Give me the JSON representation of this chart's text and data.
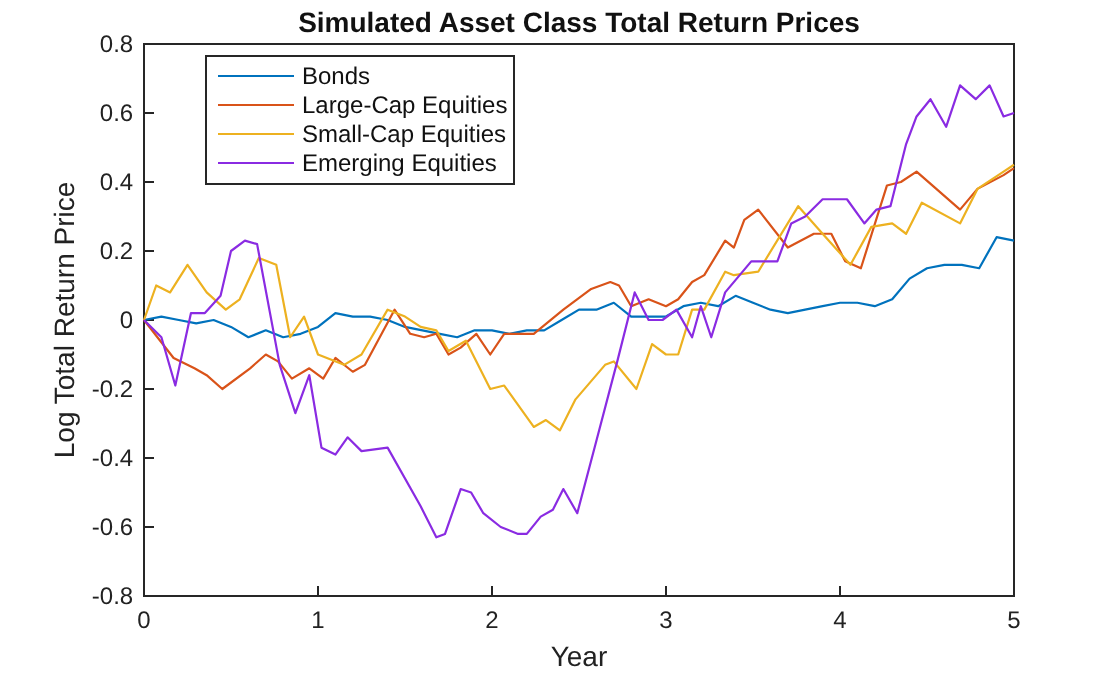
{
  "chart_data": {
    "type": "line",
    "title": "Simulated Asset Class Total Return Prices",
    "xlabel": "Year",
    "ylabel": "Log Total Return Price",
    "xlim": [
      0,
      5
    ],
    "xticks": [
      0,
      1,
      2,
      3,
      4,
      5
    ],
    "ylim": [
      -0.8,
      0.8
    ],
    "yticks": [
      -0.8,
      -0.6,
      -0.4,
      -0.2,
      0,
      0.2,
      0.4,
      0.6,
      0.8
    ],
    "legend": "top left",
    "grid": false,
    "marker": "none",
    "line_style": "solid",
    "series": [
      {
        "name": "Bonds",
        "color": "#0072bd",
        "x": [
          0,
          0.1,
          0.2,
          0.3,
          0.4,
          0.5,
          0.6,
          0.7,
          0.8,
          0.9,
          1.0,
          1.1,
          1.2,
          1.3,
          1.4,
          1.5,
          1.6,
          1.7,
          1.8,
          1.9,
          2.0,
          2.1,
          2.2,
          2.3,
          2.4,
          2.5,
          2.6,
          2.7,
          2.8,
          2.9,
          3.0,
          3.1,
          3.2,
          3.3,
          3.4,
          3.5,
          3.6,
          3.7,
          3.8,
          3.9,
          4.0,
          4.1,
          4.2,
          4.3,
          4.4,
          4.5,
          4.6,
          4.7,
          4.8,
          4.9,
          5.0
        ],
        "values": [
          0,
          0.01,
          0,
          -0.01,
          0,
          -0.02,
          -0.05,
          -0.03,
          -0.05,
          -0.04,
          -0.02,
          0.02,
          0.01,
          0.01,
          0,
          -0.02,
          -0.03,
          -0.04,
          -0.05,
          -0.03,
          -0.03,
          -0.04,
          -0.03,
          -0.03,
          0,
          0.03,
          0.03,
          0.05,
          0.01,
          0.01,
          0.01,
          0.04,
          0.05,
          0.04,
          0.07,
          0.05,
          0.03,
          0.02,
          0.03,
          0.04,
          0.05,
          0.05,
          0.04,
          0.06,
          0.12,
          0.15,
          0.16,
          0.16,
          0.15,
          0.24,
          0.23
        ]
      },
      {
        "name": "Large-Cap Equities",
        "color": "#d95319",
        "x": [
          0,
          0.17,
          0.29,
          0.36,
          0.45,
          0.61,
          0.7,
          0.77,
          0.85,
          0.95,
          1.03,
          1.1,
          1.2,
          1.27,
          1.44,
          1.53,
          1.61,
          1.68,
          1.75,
          1.82,
          1.91,
          1.99,
          2.07,
          2.24,
          2.41,
          2.57,
          2.68,
          2.73,
          2.8,
          2.9,
          3.0,
          3.07,
          3.15,
          3.22,
          3.34,
          3.39,
          3.45,
          3.53,
          3.7,
          3.85,
          3.95,
          4.03,
          4.12,
          4.27,
          4.35,
          4.44,
          4.69,
          4.79,
          4.94,
          5.0
        ],
        "values": [
          0,
          -0.11,
          -0.14,
          -0.16,
          -0.2,
          -0.14,
          -0.1,
          -0.12,
          -0.17,
          -0.14,
          -0.17,
          -0.11,
          -0.15,
          -0.13,
          0.03,
          -0.04,
          -0.05,
          -0.04,
          -0.1,
          -0.08,
          -0.04,
          -0.1,
          -0.04,
          -0.04,
          0.03,
          0.09,
          0.11,
          0.1,
          0.04,
          0.06,
          0.04,
          0.06,
          0.11,
          0.13,
          0.23,
          0.21,
          0.29,
          0.32,
          0.21,
          0.25,
          0.25,
          0.17,
          0.15,
          0.39,
          0.4,
          0.43,
          0.32,
          0.38,
          0.42,
          0.44
        ]
      },
      {
        "name": "Small-Cap Equities",
        "color": "#edb120",
        "x": [
          0,
          0.07,
          0.15,
          0.25,
          0.36,
          0.47,
          0.55,
          0.66,
          0.76,
          0.84,
          0.92,
          1.0,
          1.15,
          1.25,
          1.4,
          1.5,
          1.59,
          1.68,
          1.75,
          1.85,
          1.99,
          2.07,
          2.24,
          2.31,
          2.39,
          2.48,
          2.65,
          2.7,
          2.83,
          2.92,
          3.0,
          3.07,
          3.15,
          3.22,
          3.34,
          3.39,
          3.53,
          3.76,
          3.9,
          4.06,
          4.18,
          4.3,
          4.38,
          4.47,
          4.69,
          4.79,
          4.94,
          5.0
        ],
        "values": [
          0,
          0.1,
          0.08,
          0.16,
          0.08,
          0.03,
          0.06,
          0.18,
          0.16,
          -0.05,
          0.01,
          -0.1,
          -0.13,
          -0.1,
          0.03,
          0.01,
          -0.02,
          -0.03,
          -0.09,
          -0.06,
          -0.2,
          -0.19,
          -0.31,
          -0.29,
          -0.32,
          -0.23,
          -0.13,
          -0.12,
          -0.2,
          -0.07,
          -0.1,
          -0.1,
          0.03,
          0.03,
          0.14,
          0.13,
          0.14,
          0.33,
          0.25,
          0.16,
          0.27,
          0.28,
          0.25,
          0.34,
          0.28,
          0.38,
          0.43,
          0.45
        ]
      },
      {
        "name": "Emerging Equities",
        "color": "#8a2be2",
        "x": [
          0,
          0.1,
          0.18,
          0.27,
          0.35,
          0.44,
          0.5,
          0.58,
          0.65,
          0.78,
          0.87,
          0.95,
          1.02,
          1.1,
          1.17,
          1.25,
          1.4,
          1.59,
          1.68,
          1.73,
          1.82,
          1.88,
          1.95,
          2.05,
          2.15,
          2.2,
          2.28,
          2.35,
          2.41,
          2.49,
          2.6,
          2.72,
          2.82,
          2.9,
          2.98,
          3.06,
          3.15,
          3.2,
          3.26,
          3.34,
          3.49,
          3.64,
          3.72,
          3.8,
          3.9,
          4.04,
          4.14,
          4.21,
          4.29,
          4.38,
          4.44,
          4.52,
          4.61,
          4.69,
          4.78,
          4.86,
          4.94,
          5.0
        ],
        "values": [
          0,
          -0.05,
          -0.19,
          0.02,
          0.02,
          0.07,
          0.2,
          0.23,
          0.22,
          -0.13,
          -0.27,
          -0.16,
          -0.37,
          -0.39,
          -0.34,
          -0.38,
          -0.37,
          -0.54,
          -0.63,
          -0.62,
          -0.49,
          -0.5,
          -0.56,
          -0.6,
          -0.62,
          -0.62,
          -0.57,
          -0.55,
          -0.49,
          -0.56,
          -0.35,
          -0.12,
          0.08,
          0,
          0,
          0.03,
          -0.05,
          0.04,
          -0.05,
          0.08,
          0.17,
          0.17,
          0.28,
          0.3,
          0.35,
          0.35,
          0.28,
          0.32,
          0.33,
          0.51,
          0.59,
          0.64,
          0.56,
          0.68,
          0.64,
          0.68,
          0.59,
          0.6
        ]
      }
    ]
  }
}
